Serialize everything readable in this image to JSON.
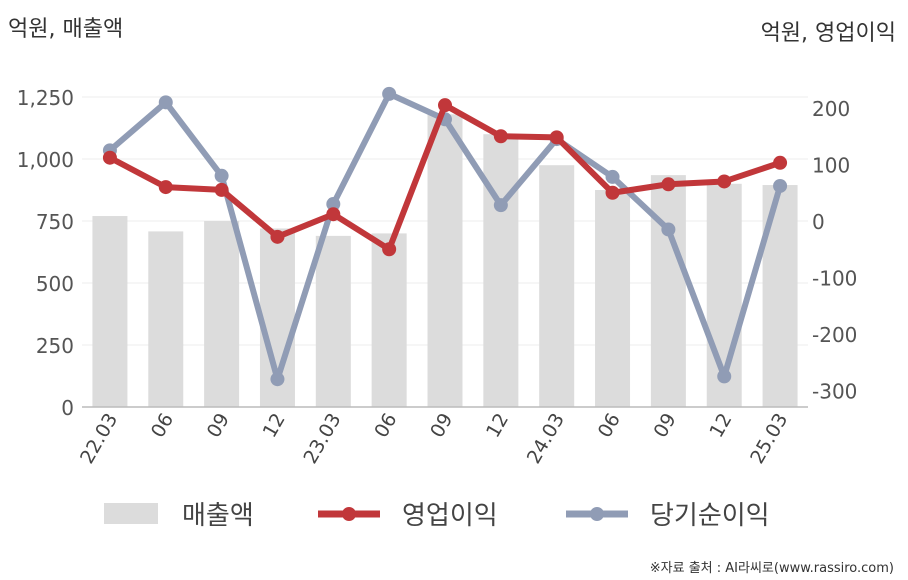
{
  "chart_data": {
    "type": "bar+line",
    "left_axis_unit": "억원, 매출액",
    "right_axis_unit": "억원, 영업이익",
    "categories": [
      "22.03",
      "06",
      "09",
      "12",
      "23.03",
      "06",
      "09",
      "12",
      "24.03",
      "06",
      "09",
      "12",
      "25.03"
    ],
    "left_axis": {
      "min": 0,
      "max": 1250,
      "ticks": [
        0,
        250,
        500,
        750,
        1000,
        1250
      ],
      "tick_labels": [
        "0",
        "250",
        "500",
        "750",
        "1,000",
        "1,250"
      ]
    },
    "right_axis": {
      "min": -320,
      "max": 240,
      "ticks": [
        -300,
        -200,
        -100,
        0,
        100,
        200
      ],
      "tick_labels": [
        "-300",
        "-200",
        "-100",
        "0",
        "100",
        "200"
      ]
    },
    "series": [
      {
        "name": "매출액",
        "type": "bar",
        "axis": "left",
        "color": "#dcdcdc",
        "values": [
          770,
          708,
          750,
          720,
          690,
          700,
          1180,
          1100,
          975,
          875,
          935,
          900,
          895
        ]
      },
      {
        "name": "영업이익",
        "type": "line",
        "axis": "right",
        "color": "#c1373a",
        "values": [
          112,
          60,
          55,
          -28,
          12,
          -50,
          205,
          150,
          148,
          50,
          65,
          70,
          103
        ]
      },
      {
        "name": "당기순이익",
        "type": "line",
        "axis": "right",
        "color": "#909cb5",
        "values": [
          125,
          210,
          80,
          -280,
          30,
          225,
          180,
          28,
          145,
          78,
          -15,
          -275,
          62
        ]
      }
    ],
    "grid": true,
    "legend_position": "bottom"
  },
  "source_note": "※자료 출처 : AI라씨로(www.rassiro.com)"
}
